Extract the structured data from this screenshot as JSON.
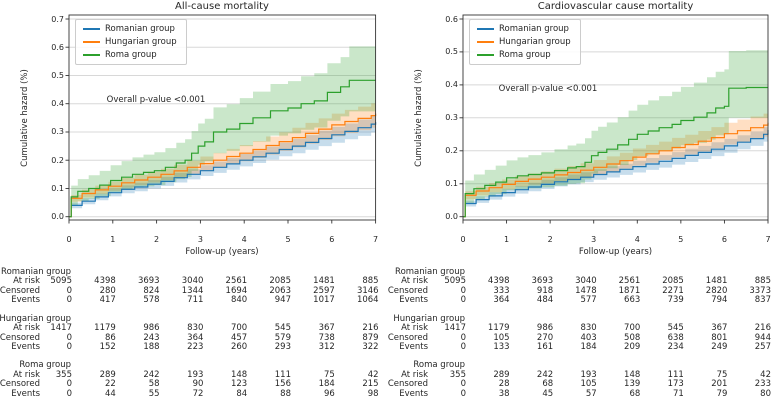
{
  "figure": {
    "background": "#ffffff"
  },
  "colors": {
    "romanian": "#1f77b4",
    "hungarian": "#ff7f0e",
    "roma": "#2ca02c",
    "grid": "#d8d8d8",
    "axis": "#333333",
    "band_opacity": 0.25
  },
  "chart_data": [
    {
      "type": "line",
      "title": "All-cause mortality",
      "xlabel": "Follow-up (years)",
      "ylabel": "Cumulative hazard (%)",
      "annotation": "Overall p-value <0.001",
      "xlim": [
        0,
        7
      ],
      "ylim": [
        0,
        0.7
      ],
      "xticks": [
        "0",
        "1",
        "2",
        "3",
        "4",
        "5",
        "6",
        "7"
      ],
      "yticks": [
        "0.0",
        "0.1",
        "0.2",
        "0.3",
        "0.4",
        "0.5",
        "0.6",
        "0.7"
      ],
      "grid": "horizontal",
      "legend_position": "upper left",
      "series": [
        {
          "name": "Romanian group",
          "color": "#1f77b4",
          "step": "post",
          "x": [
            0,
            0.05,
            0.3,
            0.6,
            0.9,
            1.2,
            1.5,
            1.8,
            2.1,
            2.4,
            2.7,
            3.0,
            3.3,
            3.6,
            3.9,
            4.2,
            4.5,
            4.8,
            5.1,
            5.4,
            5.7,
            6.0,
            6.3,
            6.6,
            6.9,
            7.0
          ],
          "y": [
            0,
            0.04,
            0.055,
            0.07,
            0.085,
            0.097,
            0.105,
            0.115,
            0.125,
            0.138,
            0.15,
            0.163,
            0.175,
            0.187,
            0.2,
            0.212,
            0.225,
            0.238,
            0.25,
            0.263,
            0.277,
            0.29,
            0.302,
            0.315,
            0.328,
            0.335
          ],
          "ci_lower": [
            0,
            0.03,
            0.044,
            0.058,
            0.072,
            0.083,
            0.09,
            0.1,
            0.109,
            0.121,
            0.132,
            0.144,
            0.155,
            0.166,
            0.178,
            0.19,
            0.202,
            0.214,
            0.225,
            0.237,
            0.25,
            0.262,
            0.274,
            0.286,
            0.298,
            0.305
          ],
          "ci_upper": [
            0,
            0.05,
            0.066,
            0.082,
            0.098,
            0.111,
            0.12,
            0.13,
            0.141,
            0.155,
            0.168,
            0.182,
            0.195,
            0.208,
            0.222,
            0.234,
            0.248,
            0.262,
            0.275,
            0.289,
            0.304,
            0.318,
            0.33,
            0.344,
            0.358,
            0.365
          ]
        },
        {
          "name": "Hungarian group",
          "color": "#ff7f0e",
          "step": "post",
          "x": [
            0,
            0.05,
            0.3,
            0.6,
            0.9,
            1.2,
            1.5,
            1.8,
            2.1,
            2.4,
            2.7,
            3.0,
            3.3,
            3.6,
            3.9,
            4.2,
            4.5,
            4.8,
            5.1,
            5.4,
            5.7,
            6.0,
            6.3,
            6.6,
            6.9,
            7.0
          ],
          "y": [
            0,
            0.065,
            0.082,
            0.095,
            0.108,
            0.12,
            0.13,
            0.14,
            0.15,
            0.162,
            0.175,
            0.188,
            0.2,
            0.213,
            0.225,
            0.238,
            0.252,
            0.266,
            0.28,
            0.295,
            0.31,
            0.325,
            0.337,
            0.348,
            0.358,
            0.365
          ],
          "ci_lower": [
            0,
            0.053,
            0.068,
            0.08,
            0.092,
            0.103,
            0.112,
            0.121,
            0.13,
            0.14,
            0.152,
            0.163,
            0.174,
            0.186,
            0.196,
            0.208,
            0.22,
            0.233,
            0.245,
            0.258,
            0.272,
            0.285,
            0.296,
            0.306,
            0.315,
            0.322
          ],
          "ci_upper": [
            0,
            0.077,
            0.096,
            0.11,
            0.124,
            0.137,
            0.148,
            0.159,
            0.17,
            0.184,
            0.198,
            0.213,
            0.226,
            0.24,
            0.254,
            0.268,
            0.284,
            0.299,
            0.315,
            0.332,
            0.348,
            0.365,
            0.378,
            0.39,
            0.401,
            0.408
          ]
        },
        {
          "name": "Roma group",
          "color": "#2ca02c",
          "step": "post",
          "x": [
            0,
            0.05,
            0.2,
            0.45,
            0.7,
            0.95,
            1.2,
            1.45,
            1.7,
            1.95,
            2.2,
            2.45,
            2.65,
            2.8,
            2.95,
            3.1,
            3.3,
            3.6,
            3.9,
            4.2,
            4.6,
            5.0,
            5.3,
            5.6,
            5.9,
            6.2,
            6.4,
            7.0
          ],
          "y": [
            0,
            0.07,
            0.09,
            0.1,
            0.112,
            0.128,
            0.14,
            0.15,
            0.157,
            0.163,
            0.175,
            0.19,
            0.2,
            0.225,
            0.25,
            0.265,
            0.3,
            0.31,
            0.33,
            0.35,
            0.375,
            0.385,
            0.4,
            0.41,
            0.44,
            0.46,
            0.483,
            0.483
          ],
          "ci_lower": [
            0,
            0.04,
            0.055,
            0.063,
            0.073,
            0.086,
            0.095,
            0.103,
            0.108,
            0.112,
            0.122,
            0.133,
            0.141,
            0.162,
            0.184,
            0.196,
            0.225,
            0.233,
            0.25,
            0.266,
            0.287,
            0.295,
            0.308,
            0.316,
            0.34,
            0.355,
            0.373,
            0.373
          ],
          "ci_upper": [
            0,
            0.11,
            0.133,
            0.147,
            0.162,
            0.182,
            0.197,
            0.21,
            0.22,
            0.228,
            0.243,
            0.262,
            0.274,
            0.303,
            0.33,
            0.347,
            0.387,
            0.398,
            0.42,
            0.443,
            0.47,
            0.48,
            0.497,
            0.508,
            0.543,
            0.565,
            0.603,
            0.603
          ]
        }
      ],
      "risk_table": {
        "time_points": [
          0,
          1,
          2,
          3,
          4,
          5,
          6,
          7
        ],
        "row_labels": [
          "At risk",
          "Censored",
          "Events"
        ],
        "groups": [
          {
            "name": "Romanian group",
            "at_risk": [
              5095,
              4398,
              3693,
              3040,
              2561,
              2085,
              1481,
              885
            ],
            "censored": [
              0,
              280,
              824,
              1344,
              1694,
              2063,
              2597,
              3146
            ],
            "events": [
              0,
              417,
              578,
              711,
              840,
              947,
              1017,
              1064
            ]
          },
          {
            "name": "Hungarian group",
            "at_risk": [
              1417,
              1179,
              986,
              830,
              700,
              545,
              367,
              216
            ],
            "censored": [
              0,
              86,
              243,
              364,
              457,
              579,
              738,
              879
            ],
            "events": [
              0,
              152,
              188,
              223,
              260,
              293,
              312,
              322
            ]
          },
          {
            "name": "Roma group",
            "at_risk": [
              355,
              289,
              242,
              193,
              148,
              111,
              75,
              42
            ],
            "censored": [
              0,
              22,
              58,
              90,
              123,
              156,
              184,
              215
            ],
            "events": [
              0,
              44,
              55,
              72,
              84,
              88,
              96,
              98
            ]
          }
        ]
      }
    },
    {
      "type": "line",
      "title": "Cardiovascular cause mortality",
      "xlabel": "Follow-up (years)",
      "ylabel": "Cumulative hazard (%)",
      "annotation": "Overall p-value <0.001",
      "xlim": [
        0,
        7
      ],
      "ylim": [
        0,
        0.6
      ],
      "xticks": [
        "0",
        "1",
        "2",
        "3",
        "4",
        "5",
        "6",
        "7"
      ],
      "yticks": [
        "0.0",
        "0.1",
        "0.2",
        "0.3",
        "0.4",
        "0.5",
        "0.6"
      ],
      "grid": "horizontal",
      "legend_position": "upper left",
      "series": [
        {
          "name": "Romanian group",
          "color": "#1f77b4",
          "step": "post",
          "x": [
            0,
            0.05,
            0.3,
            0.6,
            0.9,
            1.2,
            1.5,
            1.8,
            2.1,
            2.4,
            2.7,
            3.0,
            3.3,
            3.6,
            3.9,
            4.2,
            4.5,
            4.8,
            5.1,
            5.4,
            5.7,
            6.0,
            6.3,
            6.6,
            6.9,
            7.0
          ],
          "y": [
            0,
            0.04,
            0.052,
            0.063,
            0.073,
            0.082,
            0.09,
            0.098,
            0.106,
            0.113,
            0.12,
            0.128,
            0.136,
            0.144,
            0.152,
            0.16,
            0.168,
            0.177,
            0.186,
            0.195,
            0.205,
            0.215,
            0.226,
            0.237,
            0.25,
            0.263
          ],
          "ci_lower": [
            0,
            0.031,
            0.042,
            0.052,
            0.061,
            0.07,
            0.077,
            0.084,
            0.092,
            0.098,
            0.105,
            0.112,
            0.119,
            0.127,
            0.134,
            0.142,
            0.149,
            0.158,
            0.166,
            0.175,
            0.184,
            0.194,
            0.205,
            0.215,
            0.228,
            0.24
          ],
          "ci_upper": [
            0,
            0.049,
            0.062,
            0.074,
            0.085,
            0.094,
            0.103,
            0.112,
            0.12,
            0.128,
            0.135,
            0.144,
            0.153,
            0.161,
            0.17,
            0.178,
            0.187,
            0.196,
            0.206,
            0.215,
            0.226,
            0.236,
            0.247,
            0.259,
            0.272,
            0.286
          ]
        },
        {
          "name": "Hungarian group",
          "color": "#ff7f0e",
          "step": "post",
          "x": [
            0,
            0.05,
            0.3,
            0.6,
            0.9,
            1.2,
            1.5,
            1.8,
            2.1,
            2.4,
            2.7,
            3.0,
            3.3,
            3.6,
            3.9,
            4.2,
            4.5,
            4.8,
            5.1,
            5.4,
            5.7,
            6.0,
            6.3,
            6.6,
            6.9,
            7.0
          ],
          "y": [
            0,
            0.065,
            0.078,
            0.088,
            0.098,
            0.107,
            0.114,
            0.12,
            0.127,
            0.134,
            0.141,
            0.15,
            0.16,
            0.17,
            0.181,
            0.191,
            0.2,
            0.21,
            0.219,
            0.229,
            0.24,
            0.252,
            0.261,
            0.27,
            0.278,
            0.285
          ],
          "ci_lower": [
            0,
            0.053,
            0.065,
            0.074,
            0.083,
            0.091,
            0.097,
            0.102,
            0.108,
            0.114,
            0.12,
            0.128,
            0.137,
            0.146,
            0.155,
            0.164,
            0.172,
            0.181,
            0.189,
            0.198,
            0.208,
            0.219,
            0.227,
            0.236,
            0.243,
            0.25
          ],
          "ci_upper": [
            0,
            0.077,
            0.091,
            0.102,
            0.113,
            0.123,
            0.131,
            0.138,
            0.146,
            0.154,
            0.162,
            0.172,
            0.183,
            0.194,
            0.207,
            0.218,
            0.228,
            0.239,
            0.249,
            0.26,
            0.272,
            0.285,
            0.295,
            0.304,
            0.313,
            0.32
          ]
        },
        {
          "name": "Roma group",
          "color": "#2ca02c",
          "step": "post",
          "x": [
            0,
            0.05,
            0.25,
            0.5,
            0.75,
            1.0,
            1.25,
            1.5,
            1.8,
            2.1,
            2.4,
            2.6,
            2.8,
            2.95,
            3.1,
            3.3,
            3.55,
            3.8,
            4.0,
            4.25,
            4.5,
            4.8,
            5.0,
            5.3,
            5.6,
            5.8,
            6.0,
            6.1,
            6.5,
            7.0
          ],
          "y": [
            0,
            0.07,
            0.085,
            0.095,
            0.105,
            0.118,
            0.124,
            0.128,
            0.133,
            0.14,
            0.148,
            0.152,
            0.165,
            0.185,
            0.195,
            0.205,
            0.218,
            0.235,
            0.25,
            0.26,
            0.27,
            0.28,
            0.292,
            0.302,
            0.315,
            0.33,
            0.335,
            0.39,
            0.392,
            0.392
          ],
          "ci_lower": [
            0,
            0.04,
            0.053,
            0.061,
            0.069,
            0.08,
            0.084,
            0.086,
            0.089,
            0.094,
            0.1,
            0.102,
            0.113,
            0.131,
            0.139,
            0.147,
            0.157,
            0.172,
            0.184,
            0.192,
            0.2,
            0.207,
            0.217,
            0.224,
            0.234,
            0.247,
            0.25,
            0.3,
            0.3,
            0.3
          ],
          "ci_upper": [
            0,
            0.11,
            0.128,
            0.142,
            0.155,
            0.171,
            0.18,
            0.187,
            0.195,
            0.205,
            0.216,
            0.222,
            0.238,
            0.261,
            0.273,
            0.286,
            0.302,
            0.322,
            0.34,
            0.353,
            0.366,
            0.379,
            0.394,
            0.407,
            0.423,
            0.44,
            0.447,
            0.503,
            0.505,
            0.505
          ]
        }
      ],
      "risk_table": {
        "time_points": [
          0,
          1,
          2,
          3,
          4,
          5,
          6,
          7
        ],
        "row_labels": [
          "At risk",
          "Censored",
          "Events"
        ],
        "groups": [
          {
            "name": "Romanian group",
            "at_risk": [
              5095,
              4398,
              3693,
              3040,
              2561,
              2085,
              1481,
              885
            ],
            "censored": [
              0,
              333,
              918,
              1478,
              1871,
              2271,
              2820,
              3373
            ],
            "events": [
              0,
              364,
              484,
              577,
              663,
              739,
              794,
              837
            ]
          },
          {
            "name": "Hungarian group",
            "at_risk": [
              1417,
              1179,
              986,
              830,
              700,
              545,
              367,
              216
            ],
            "censored": [
              0,
              105,
              270,
              403,
              508,
              638,
              801,
              944
            ],
            "events": [
              0,
              133,
              161,
              184,
              209,
              234,
              249,
              257
            ]
          },
          {
            "name": "Roma group",
            "at_risk": [
              355,
              289,
              242,
              193,
              148,
              111,
              75,
              42
            ],
            "censored": [
              0,
              28,
              68,
              105,
              139,
              173,
              201,
              233
            ],
            "events": [
              0,
              38,
              45,
              57,
              68,
              71,
              79,
              80
            ]
          }
        ]
      }
    }
  ]
}
